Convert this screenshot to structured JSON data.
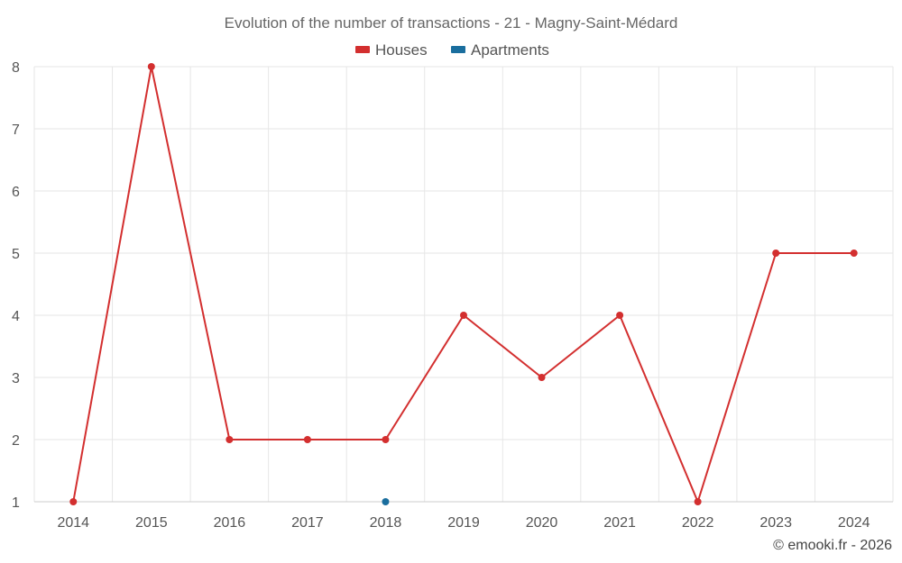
{
  "chart_data": {
    "type": "line",
    "title": "Evolution of the number of transactions - 21 - Magny-Saint-Médard",
    "categories": [
      "2014",
      "2015",
      "2016",
      "2017",
      "2018",
      "2019",
      "2020",
      "2021",
      "2022",
      "2023",
      "2024"
    ],
    "series": [
      {
        "name": "Houses",
        "color": "#d32f2f",
        "values": [
          1,
          8,
          2,
          2,
          2,
          4,
          3,
          4,
          1,
          5,
          5
        ]
      },
      {
        "name": "Apartments",
        "color": "#1a6e9e",
        "values": [
          null,
          null,
          null,
          null,
          1,
          null,
          null,
          null,
          null,
          null,
          null
        ]
      }
    ],
    "yticks": [
      1,
      2,
      3,
      4,
      5,
      6,
      7,
      8
    ],
    "ylim": [
      1,
      8
    ],
    "xlabel": "",
    "ylabel": "",
    "grid": true,
    "legend": "top-center"
  },
  "credit": "© emooki.fr - 2026"
}
